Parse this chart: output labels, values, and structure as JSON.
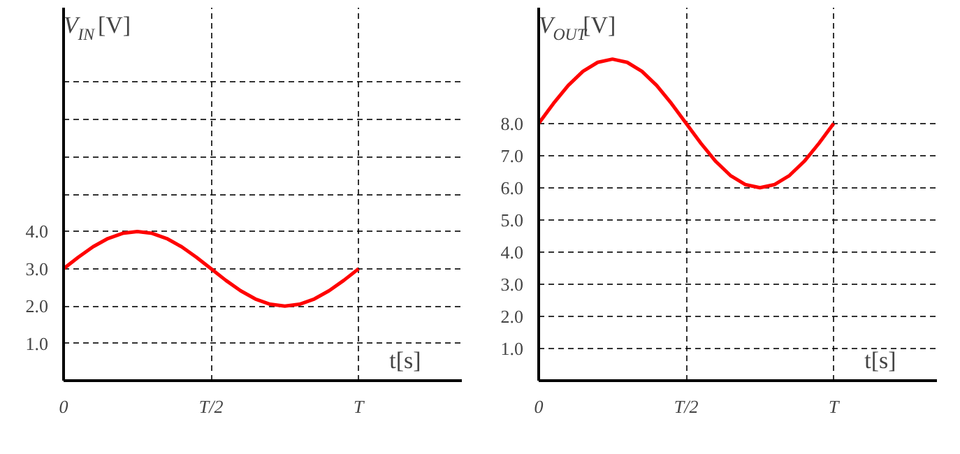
{
  "chart_data": [
    {
      "type": "line",
      "ylabel": "V$_{IN}$[V]",
      "xlabel": "t[s]",
      "categories": [
        "0",
        null,
        null,
        null,
        null,
        null,
        null,
        null,
        null,
        null,
        "T/2",
        null,
        null,
        null,
        null,
        null,
        null,
        null,
        null,
        null,
        "T"
      ],
      "series": [
        {
          "color": "#ff0000",
          "values": [
            3,
            3.31,
            3.59,
            3.81,
            3.95,
            4,
            3.95,
            3.81,
            3.59,
            3.31,
            3,
            2.69,
            2.41,
            2.19,
            2.05,
            2,
            2.05,
            2.19,
            2.41,
            2.69,
            3
          ]
        }
      ],
      "ylim": [
        0,
        10
      ],
      "yticks": [
        {
          "value": 1,
          "label": "1.0"
        },
        {
          "value": 2,
          "label": "2.0"
        },
        {
          "value": 3,
          "label": "3.0"
        },
        {
          "value": 4,
          "label": "4.0"
        },
        {
          "value": 5,
          "label": null
        },
        {
          "value": 6,
          "label": null
        },
        {
          "value": 7,
          "label": null
        },
        {
          "value": 8,
          "label": null
        }
      ],
      "grid": true,
      "line_style": "solid"
    },
    {
      "type": "line",
      "ylabel": "V$_{OUT}$[V]",
      "xlabel": "t[s]",
      "categories": [
        "0",
        null,
        null,
        null,
        null,
        null,
        null,
        null,
        null,
        null,
        "T/2",
        null,
        null,
        null,
        null,
        null,
        null,
        null,
        null,
        null,
        "T"
      ],
      "series": [
        {
          "color": "#ff0000",
          "values": [
            8,
            8.62,
            9.18,
            9.62,
            9.9,
            10,
            9.9,
            9.62,
            9.18,
            8.62,
            8,
            7.38,
            6.82,
            6.38,
            6.1,
            6,
            6.1,
            6.38,
            6.82,
            7.38,
            8
          ]
        }
      ],
      "ylim": [
        0,
        11.6
      ],
      "yticks": [
        {
          "value": 1,
          "label": "1.0"
        },
        {
          "value": 2,
          "label": "2.0"
        },
        {
          "value": 3,
          "label": "3.0"
        },
        {
          "value": 4,
          "label": "4.0"
        },
        {
          "value": 5,
          "label": "5.0"
        },
        {
          "value": 6,
          "label": "6.0"
        },
        {
          "value": 7,
          "label": "7.0"
        },
        {
          "value": 8,
          "label": "8.0"
        }
      ],
      "grid": true,
      "line_style": "solid"
    }
  ]
}
